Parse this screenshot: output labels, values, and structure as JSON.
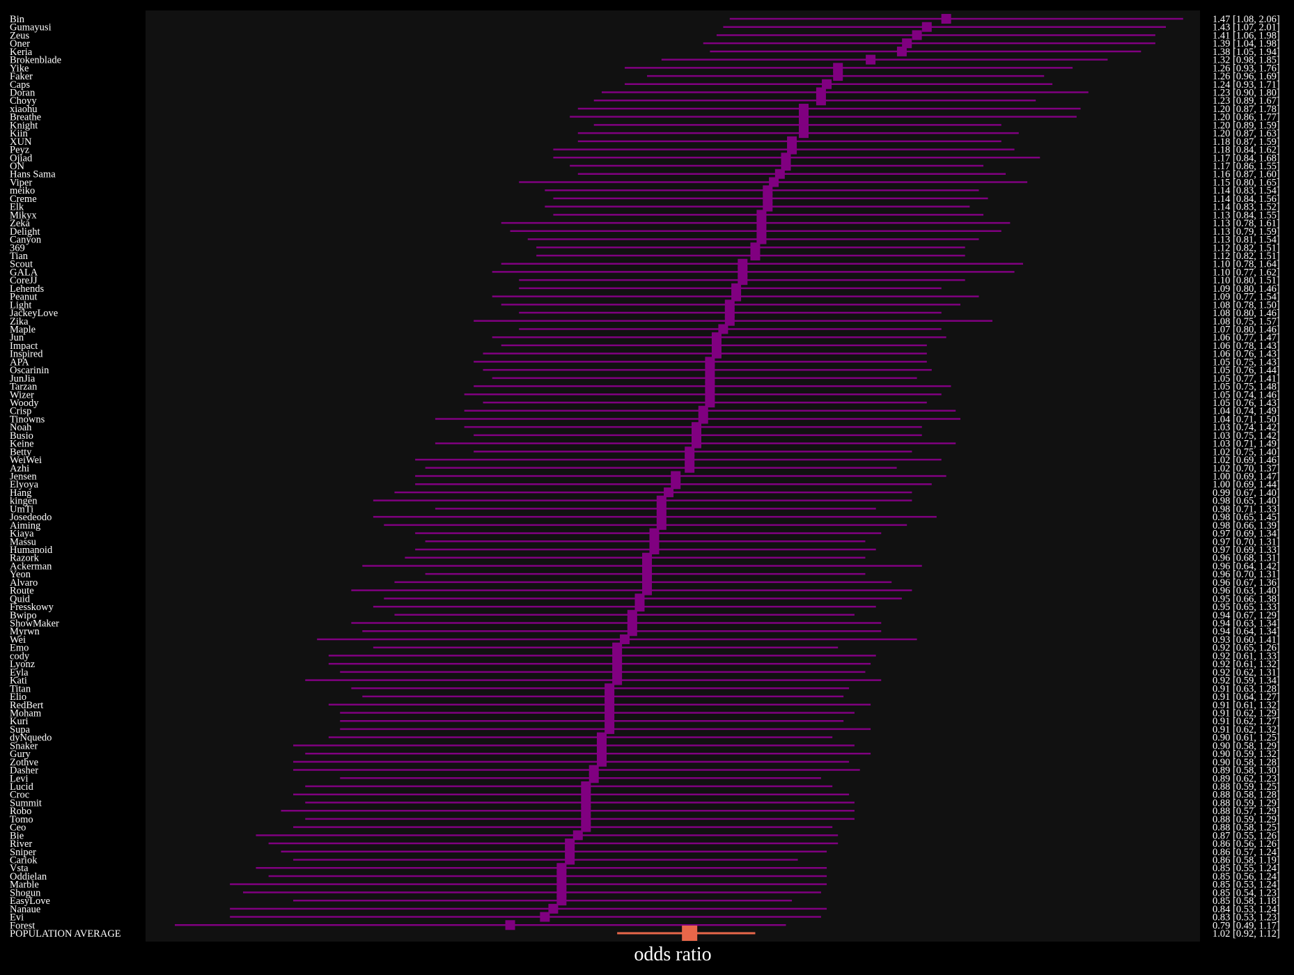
{
  "chart_data": {
    "type": "forest",
    "xlabel": "odds ratio",
    "colors": {
      "background": "#000000",
      "plot_area": "#111111",
      "player": "#800080",
      "population": "#e8674a",
      "text": "#ffffff"
    },
    "grid": false,
    "rows": [
      {
        "name": "Bin",
        "or": 1.47,
        "lo": 1.08,
        "hi": 2.06,
        "label": "1.47 [1.08, 2.06]"
      },
      {
        "name": "Gumayusi",
        "or": 1.43,
        "lo": 1.07,
        "hi": 2.01,
        "label": "1.43 [1.07, 2.01]"
      },
      {
        "name": "Zeus",
        "or": 1.41,
        "lo": 1.06,
        "hi": 1.98,
        "label": "1.41 [1.06, 1.98]"
      },
      {
        "name": "Oner",
        "or": 1.39,
        "lo": 1.04,
        "hi": 1.98,
        "label": "1.39 [1.04, 1.98]"
      },
      {
        "name": "Keria",
        "or": 1.38,
        "lo": 1.05,
        "hi": 1.94,
        "label": "1.38 [1.05, 1.94]"
      },
      {
        "name": "Brokenblade",
        "or": 1.32,
        "lo": 0.98,
        "hi": 1.85,
        "label": "1.32 [0.98, 1.85]"
      },
      {
        "name": "Yike",
        "or": 1.26,
        "lo": 0.93,
        "hi": 1.76,
        "label": "1.26 [0.93, 1.76]"
      },
      {
        "name": "Faker",
        "or": 1.26,
        "lo": 0.96,
        "hi": 1.69,
        "label": "1.26 [0.96, 1.69]"
      },
      {
        "name": "Caps",
        "or": 1.24,
        "lo": 0.93,
        "hi": 1.71,
        "label": "1.24 [0.93, 1.71]"
      },
      {
        "name": "Doran",
        "or": 1.23,
        "lo": 0.9,
        "hi": 1.8,
        "label": "1.23 [0.90, 1.80]"
      },
      {
        "name": "Choyy",
        "or": 1.23,
        "lo": 0.89,
        "hi": 1.67,
        "label": "1.23 [0.89, 1.67]"
      },
      {
        "name": "xiaohu",
        "or": 1.2,
        "lo": 0.87,
        "hi": 1.78,
        "label": "1.20 [0.87, 1.78]"
      },
      {
        "name": "Breathe",
        "or": 1.2,
        "lo": 0.86,
        "hi": 1.77,
        "label": "1.20 [0.86, 1.77]"
      },
      {
        "name": "Knight",
        "or": 1.2,
        "lo": 0.89,
        "hi": 1.59,
        "label": "1.20 [0.89, 1.59]"
      },
      {
        "name": "Kiin",
        "or": 1.2,
        "lo": 0.87,
        "hi": 1.63,
        "label": "1.20 [0.87, 1.63]"
      },
      {
        "name": "XUN",
        "or": 1.18,
        "lo": 0.87,
        "hi": 1.59,
        "label": "1.18 [0.87, 1.59]"
      },
      {
        "name": "Peyz",
        "or": 1.18,
        "lo": 0.84,
        "hi": 1.62,
        "label": "1.18 [0.84, 1.62]"
      },
      {
        "name": "Ojiad",
        "or": 1.17,
        "lo": 0.84,
        "hi": 1.68,
        "label": "1.17 [0.84, 1.68]"
      },
      {
        "name": "ON",
        "or": 1.17,
        "lo": 0.86,
        "hi": 1.55,
        "label": "1.17 [0.86, 1.55]"
      },
      {
        "name": "Hans Sama",
        "or": 1.16,
        "lo": 0.87,
        "hi": 1.6,
        "label": "1.16 [0.87, 1.60]"
      },
      {
        "name": "Viper",
        "or": 1.15,
        "lo": 0.8,
        "hi": 1.65,
        "label": "1.15 [0.80, 1.65]"
      },
      {
        "name": "meiko",
        "or": 1.14,
        "lo": 0.83,
        "hi": 1.54,
        "label": "1.14 [0.83, 1.54]"
      },
      {
        "name": "Creme",
        "or": 1.14,
        "lo": 0.84,
        "hi": 1.56,
        "label": "1.14 [0.84, 1.56]"
      },
      {
        "name": "Elk",
        "or": 1.14,
        "lo": 0.83,
        "hi": 1.52,
        "label": "1.14 [0.83, 1.52]"
      },
      {
        "name": "Mikyx",
        "or": 1.13,
        "lo": 0.84,
        "hi": 1.55,
        "label": "1.13 [0.84, 1.55]"
      },
      {
        "name": "Zeka",
        "or": 1.13,
        "lo": 0.78,
        "hi": 1.61,
        "label": "1.13 [0.78, 1.61]"
      },
      {
        "name": "Delight",
        "or": 1.13,
        "lo": 0.79,
        "hi": 1.59,
        "label": "1.13 [0.79, 1.59]"
      },
      {
        "name": "Canyon",
        "or": 1.13,
        "lo": 0.81,
        "hi": 1.54,
        "label": "1.13 [0.81, 1.54]"
      },
      {
        "name": "369",
        "or": 1.12,
        "lo": 0.82,
        "hi": 1.51,
        "label": "1.12 [0.82, 1.51]"
      },
      {
        "name": "Tian",
        "or": 1.12,
        "lo": 0.82,
        "hi": 1.51,
        "label": "1.12 [0.82, 1.51]"
      },
      {
        "name": "Scout",
        "or": 1.1,
        "lo": 0.78,
        "hi": 1.64,
        "label": "1.10 [0.78, 1.64]"
      },
      {
        "name": "GALA",
        "or": 1.1,
        "lo": 0.77,
        "hi": 1.62,
        "label": "1.10 [0.77, 1.62]"
      },
      {
        "name": "CoreJJ",
        "or": 1.1,
        "lo": 0.8,
        "hi": 1.51,
        "label": "1.10 [0.80, 1.51]"
      },
      {
        "name": "Lehends",
        "or": 1.09,
        "lo": 0.8,
        "hi": 1.46,
        "label": "1.09 [0.80, 1.46]"
      },
      {
        "name": "Peanut",
        "or": 1.09,
        "lo": 0.77,
        "hi": 1.54,
        "label": "1.09 [0.77, 1.54]"
      },
      {
        "name": "Light",
        "or": 1.08,
        "lo": 0.78,
        "hi": 1.5,
        "label": "1.08 [0.78, 1.50]"
      },
      {
        "name": "JackeyLove",
        "or": 1.08,
        "lo": 0.8,
        "hi": 1.46,
        "label": "1.08 [0.80, 1.46]"
      },
      {
        "name": "Zika",
        "or": 1.08,
        "lo": 0.75,
        "hi": 1.57,
        "label": "1.08 [0.75, 1.57]"
      },
      {
        "name": "Maple",
        "or": 1.07,
        "lo": 0.8,
        "hi": 1.46,
        "label": "1.07 [0.80, 1.46]"
      },
      {
        "name": "Jun",
        "or": 1.06,
        "lo": 0.77,
        "hi": 1.47,
        "label": "1.06 [0.77, 1.47]"
      },
      {
        "name": "Impact",
        "or": 1.06,
        "lo": 0.78,
        "hi": 1.43,
        "label": "1.06 [0.78, 1.43]"
      },
      {
        "name": "Inspired",
        "or": 1.06,
        "lo": 0.76,
        "hi": 1.43,
        "label": "1.06 [0.76, 1.43]"
      },
      {
        "name": "APA",
        "or": 1.05,
        "lo": 0.75,
        "hi": 1.43,
        "label": "1.05 [0.75, 1.43]"
      },
      {
        "name": "Oscarinin",
        "or": 1.05,
        "lo": 0.76,
        "hi": 1.44,
        "label": "1.05 [0.76, 1.44]"
      },
      {
        "name": "JunJia",
        "or": 1.05,
        "lo": 0.77,
        "hi": 1.41,
        "label": "1.05 [0.77, 1.41]"
      },
      {
        "name": "Tarzan",
        "or": 1.05,
        "lo": 0.75,
        "hi": 1.48,
        "label": "1.05 [0.75, 1.48]"
      },
      {
        "name": "Wizer",
        "or": 1.05,
        "lo": 0.74,
        "hi": 1.46,
        "label": "1.05 [0.74, 1.46]"
      },
      {
        "name": "Woody",
        "or": 1.05,
        "lo": 0.76,
        "hi": 1.43,
        "label": "1.05 [0.76, 1.43]"
      },
      {
        "name": "Crisp",
        "or": 1.04,
        "lo": 0.74,
        "hi": 1.49,
        "label": "1.04 [0.74, 1.49]"
      },
      {
        "name": "Tinowns",
        "or": 1.04,
        "lo": 0.71,
        "hi": 1.5,
        "label": "1.04 [0.71, 1.50]"
      },
      {
        "name": "Noah",
        "or": 1.03,
        "lo": 0.74,
        "hi": 1.42,
        "label": "1.03 [0.74, 1.42]"
      },
      {
        "name": "Busio",
        "or": 1.03,
        "lo": 0.75,
        "hi": 1.42,
        "label": "1.03 [0.75, 1.42]"
      },
      {
        "name": "Keine",
        "or": 1.03,
        "lo": 0.71,
        "hi": 1.49,
        "label": "1.03 [0.71, 1.49]"
      },
      {
        "name": "Betty",
        "or": 1.02,
        "lo": 0.75,
        "hi": 1.4,
        "label": "1.02 [0.75, 1.40]"
      },
      {
        "name": "WeiWei",
        "or": 1.02,
        "lo": 0.69,
        "hi": 1.46,
        "label": "1.02 [0.69, 1.46]"
      },
      {
        "name": "Azhi",
        "or": 1.02,
        "lo": 0.7,
        "hi": 1.37,
        "label": "1.02 [0.70, 1.37]"
      },
      {
        "name": "Jensen",
        "or": 1.0,
        "lo": 0.69,
        "hi": 1.47,
        "label": "1.00 [0.69, 1.47]"
      },
      {
        "name": "Elyoya",
        "or": 1.0,
        "lo": 0.69,
        "hi": 1.44,
        "label": "1.00 [0.69, 1.44]"
      },
      {
        "name": "Hang",
        "or": 0.99,
        "lo": 0.67,
        "hi": 1.4,
        "label": "0.99 [0.67, 1.40]"
      },
      {
        "name": "kingen",
        "or": 0.98,
        "lo": 0.65,
        "hi": 1.4,
        "label": "0.98 [0.65, 1.40]"
      },
      {
        "name": "UmTi",
        "or": 0.98,
        "lo": 0.71,
        "hi": 1.33,
        "label": "0.98 [0.71, 1.33]"
      },
      {
        "name": "Josedeodo",
        "or": 0.98,
        "lo": 0.65,
        "hi": 1.45,
        "label": "0.98 [0.65, 1.45]"
      },
      {
        "name": "Aiming",
        "or": 0.98,
        "lo": 0.66,
        "hi": 1.39,
        "label": "0.98 [0.66, 1.39]"
      },
      {
        "name": "Kiaya",
        "or": 0.97,
        "lo": 0.69,
        "hi": 1.34,
        "label": "0.97 [0.69, 1.34]"
      },
      {
        "name": "Massu",
        "or": 0.97,
        "lo": 0.7,
        "hi": 1.31,
        "label": "0.97 [0.70, 1.31]"
      },
      {
        "name": "Humanoid",
        "or": 0.97,
        "lo": 0.69,
        "hi": 1.33,
        "label": "0.97 [0.69, 1.33]"
      },
      {
        "name": "Razork",
        "or": 0.96,
        "lo": 0.68,
        "hi": 1.31,
        "label": "0.96 [0.68, 1.31]"
      },
      {
        "name": "Ackerman",
        "or": 0.96,
        "lo": 0.64,
        "hi": 1.42,
        "label": "0.96 [0.64, 1.42]"
      },
      {
        "name": "Yeon",
        "or": 0.96,
        "lo": 0.7,
        "hi": 1.31,
        "label": "0.96 [0.70, 1.31]"
      },
      {
        "name": "Alvaro",
        "or": 0.96,
        "lo": 0.67,
        "hi": 1.36,
        "label": "0.96 [0.67, 1.36]"
      },
      {
        "name": "Route",
        "or": 0.96,
        "lo": 0.63,
        "hi": 1.4,
        "label": "0.96 [0.63, 1.40]"
      },
      {
        "name": "Quid",
        "or": 0.95,
        "lo": 0.66,
        "hi": 1.38,
        "label": "0.95 [0.66, 1.38]"
      },
      {
        "name": "Fresskowy",
        "or": 0.95,
        "lo": 0.65,
        "hi": 1.33,
        "label": "0.95 [0.65, 1.33]"
      },
      {
        "name": "Bwipo",
        "or": 0.94,
        "lo": 0.67,
        "hi": 1.29,
        "label": "0.94 [0.67, 1.29]"
      },
      {
        "name": "ShowMaker",
        "or": 0.94,
        "lo": 0.63,
        "hi": 1.34,
        "label": "0.94 [0.63, 1.34]"
      },
      {
        "name": "Myrwn",
        "or": 0.94,
        "lo": 0.64,
        "hi": 1.34,
        "label": "0.94 [0.64, 1.34]"
      },
      {
        "name": "Wei",
        "or": 0.93,
        "lo": 0.6,
        "hi": 1.41,
        "label": "0.93 [0.60, 1.41]"
      },
      {
        "name": "Emo",
        "or": 0.92,
        "lo": 0.65,
        "hi": 1.26,
        "label": "0.92 [0.65, 1.26]"
      },
      {
        "name": "cody",
        "or": 0.92,
        "lo": 0.61,
        "hi": 1.33,
        "label": "0.92 [0.61, 1.33]"
      },
      {
        "name": "Lyonz",
        "or": 0.92,
        "lo": 0.61,
        "hi": 1.32,
        "label": "0.92 [0.61, 1.32]"
      },
      {
        "name": "Eyla",
        "or": 0.92,
        "lo": 0.62,
        "hi": 1.31,
        "label": "0.92 [0.62, 1.31]"
      },
      {
        "name": "Kati",
        "or": 0.92,
        "lo": 0.59,
        "hi": 1.34,
        "label": "0.92 [0.59, 1.34]"
      },
      {
        "name": "Titan",
        "or": 0.91,
        "lo": 0.63,
        "hi": 1.28,
        "label": "0.91 [0.63, 1.28]"
      },
      {
        "name": "Elio",
        "or": 0.91,
        "lo": 0.64,
        "hi": 1.27,
        "label": "0.91 [0.64, 1.27]"
      },
      {
        "name": "RedBert",
        "or": 0.91,
        "lo": 0.61,
        "hi": 1.32,
        "label": "0.91 [0.61, 1.32]"
      },
      {
        "name": "Moham",
        "or": 0.91,
        "lo": 0.62,
        "hi": 1.29,
        "label": "0.91 [0.62, 1.29]"
      },
      {
        "name": "Kuri",
        "or": 0.91,
        "lo": 0.62,
        "hi": 1.27,
        "label": "0.91 [0.62, 1.27]"
      },
      {
        "name": "Supa",
        "or": 0.91,
        "lo": 0.62,
        "hi": 1.32,
        "label": "0.91 [0.62, 1.32]"
      },
      {
        "name": "dyNquedo",
        "or": 0.9,
        "lo": 0.61,
        "hi": 1.25,
        "label": "0.90 [0.61, 1.25]"
      },
      {
        "name": "Snaker",
        "or": 0.9,
        "lo": 0.58,
        "hi": 1.29,
        "label": "0.90 [0.58, 1.29]"
      },
      {
        "name": "Gury",
        "or": 0.9,
        "lo": 0.59,
        "hi": 1.32,
        "label": "0.90 [0.59, 1.32]"
      },
      {
        "name": "Zothve",
        "or": 0.9,
        "lo": 0.58,
        "hi": 1.28,
        "label": "0.90 [0.58, 1.28]"
      },
      {
        "name": "Dasher",
        "or": 0.89,
        "lo": 0.58,
        "hi": 1.3,
        "label": "0.89 [0.58, 1.30]"
      },
      {
        "name": "Levi",
        "or": 0.89,
        "lo": 0.62,
        "hi": 1.23,
        "label": "0.89 [0.62, 1.23]"
      },
      {
        "name": "Lucid",
        "or": 0.88,
        "lo": 0.59,
        "hi": 1.25,
        "label": "0.88 [0.59, 1.25]"
      },
      {
        "name": "Croc",
        "or": 0.88,
        "lo": 0.58,
        "hi": 1.28,
        "label": "0.88 [0.58, 1.28]"
      },
      {
        "name": "Summit",
        "or": 0.88,
        "lo": 0.59,
        "hi": 1.29,
        "label": "0.88 [0.59, 1.29]"
      },
      {
        "name": "Robo",
        "or": 0.88,
        "lo": 0.57,
        "hi": 1.29,
        "label": "0.88 [0.57, 1.29]"
      },
      {
        "name": "Tomo",
        "or": 0.88,
        "lo": 0.59,
        "hi": 1.29,
        "label": "0.88 [0.59, 1.29]"
      },
      {
        "name": "Ceo",
        "or": 0.88,
        "lo": 0.58,
        "hi": 1.25,
        "label": "0.88 [0.58, 1.25]"
      },
      {
        "name": "Bie",
        "or": 0.87,
        "lo": 0.55,
        "hi": 1.26,
        "label": "0.87 [0.55, 1.26]"
      },
      {
        "name": "River",
        "or": 0.86,
        "lo": 0.56,
        "hi": 1.26,
        "label": "0.86 [0.56, 1.26]"
      },
      {
        "name": "Sniper",
        "or": 0.86,
        "lo": 0.57,
        "hi": 1.24,
        "label": "0.86 [0.57, 1.24]"
      },
      {
        "name": "Cariok",
        "or": 0.86,
        "lo": 0.58,
        "hi": 1.19,
        "label": "0.86 [0.58, 1.19]"
      },
      {
        "name": "Vsta",
        "or": 0.85,
        "lo": 0.55,
        "hi": 1.24,
        "label": "0.85 [0.55, 1.24]"
      },
      {
        "name": "Oddielan",
        "or": 0.85,
        "lo": 0.56,
        "hi": 1.24,
        "label": "0.85 [0.56, 1.24]"
      },
      {
        "name": "Marble",
        "or": 0.85,
        "lo": 0.53,
        "hi": 1.24,
        "label": "0.85 [0.53, 1.24]"
      },
      {
        "name": "Shogun",
        "or": 0.85,
        "lo": 0.54,
        "hi": 1.23,
        "label": "0.85 [0.54, 1.23]"
      },
      {
        "name": "EasyLove",
        "or": 0.85,
        "lo": 0.58,
        "hi": 1.18,
        "label": "0.85 [0.58, 1.18]"
      },
      {
        "name": "Nanaue",
        "or": 0.84,
        "lo": 0.53,
        "hi": 1.24,
        "label": "0.84 [0.53, 1.24]"
      },
      {
        "name": "Evi",
        "or": 0.83,
        "lo": 0.53,
        "hi": 1.23,
        "label": "0.83 [0.53, 1.23]"
      },
      {
        "name": "Forest",
        "or": 0.79,
        "lo": 0.49,
        "hi": 1.17,
        "label": "0.79 [0.49, 1.17]"
      }
    ],
    "population": {
      "name": "POPULATION AVERAGE",
      "or": 1.02,
      "lo": 0.92,
      "hi": 1.12,
      "label": "1.02 [0.92, 1.12]"
    }
  }
}
